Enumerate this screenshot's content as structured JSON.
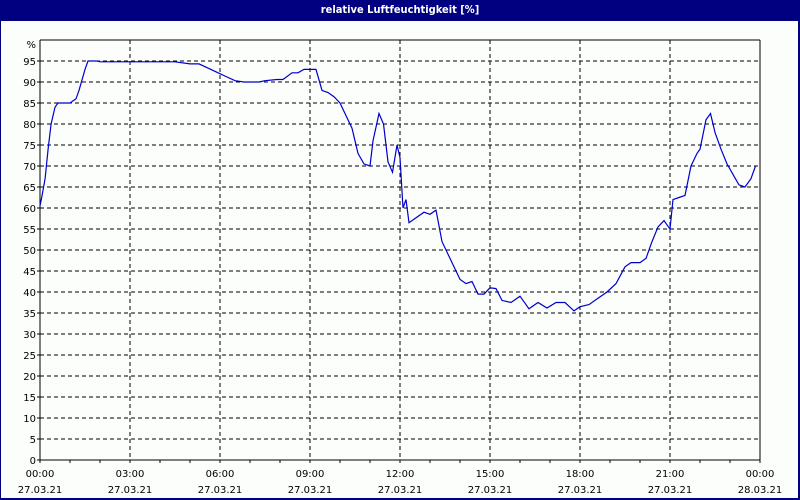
{
  "window": {
    "title": "relative Luftfeuchtigkeit [%]"
  },
  "colors": {
    "frame": "#000080",
    "background": "#fcfefc",
    "line": "#0000cc",
    "grid": "#000000"
  },
  "chart_data": {
    "type": "line",
    "title": "relative Luftfeuchtigkeit [%]",
    "xlabel": "",
    "ylabel": "%",
    "ylim": [
      0,
      100
    ],
    "xlim_hours": [
      0,
      24
    ],
    "grid": true,
    "y_ticks": [
      "0",
      "5",
      "10",
      "15",
      "20",
      "25",
      "30",
      "35",
      "40",
      "45",
      "50",
      "55",
      "60",
      "65",
      "70",
      "75",
      "80",
      "85",
      "90",
      "95",
      "%"
    ],
    "x_ticks": [
      {
        "time": "00:00",
        "date": "27.03.21"
      },
      {
        "time": "03:00",
        "date": "27.03.21"
      },
      {
        "time": "06:00",
        "date": "27.03.21"
      },
      {
        "time": "09:00",
        "date": "27.03.21"
      },
      {
        "time": "12:00",
        "date": "27.03.21"
      },
      {
        "time": "15:00",
        "date": "27.03.21"
      },
      {
        "time": "18:00",
        "date": "27.03.21"
      },
      {
        "time": "21:00",
        "date": "27.03.21"
      },
      {
        "time": "00:00",
        "date": "28.03.21"
      }
    ],
    "series": [
      {
        "name": "relative Luftfeuchtigkeit",
        "x_hours": [
          0,
          0.07,
          0.17,
          0.27,
          0.37,
          0.5,
          0.6,
          1.0,
          1.1,
          1.2,
          1.3,
          1.5,
          1.6,
          1.9,
          2.0,
          3.0,
          4.0,
          4.5,
          5.0,
          5.3,
          5.6,
          5.9,
          6.2,
          6.5,
          6.8,
          7.0,
          7.3,
          7.5,
          7.9,
          8.1,
          8.4,
          8.6,
          8.8,
          9.0,
          9.2,
          9.4,
          9.6,
          9.8,
          10.0,
          10.2,
          10.4,
          10.6,
          10.8,
          11.0,
          11.1,
          11.3,
          11.45,
          11.6,
          11.75,
          11.9,
          12.0,
          12.1,
          12.2,
          12.3,
          12.5,
          12.8,
          13.0,
          13.2,
          13.4,
          13.7,
          14.0,
          14.2,
          14.4,
          14.6,
          14.8,
          15.0,
          15.2,
          15.4,
          15.7,
          16.0,
          16.3,
          16.6,
          16.9,
          17.2,
          17.5,
          17.8,
          18.0,
          18.3,
          18.6,
          18.9,
          19.2,
          19.5,
          19.7,
          20.0,
          20.2,
          20.4,
          20.6,
          20.8,
          20.9,
          21.0,
          21.1,
          21.3,
          21.5,
          21.7,
          21.9,
          22.0,
          22.2,
          22.35,
          22.5,
          22.7,
          22.9,
          23.1,
          23.3,
          23.5,
          23.7,
          23.85
        ],
        "values": [
          60.5,
          63,
          67,
          74,
          80,
          84,
          85,
          85,
          85.5,
          86,
          88,
          93,
          95,
          95,
          94.8,
          94.8,
          94.8,
          94.8,
          94.3,
          94.3,
          93.3,
          92.3,
          91.3,
          90.3,
          90,
          90,
          90,
          90.3,
          90.6,
          90.6,
          92.2,
          92.2,
          93,
          93,
          93,
          88,
          87.5,
          86.5,
          85,
          82,
          79,
          73,
          70.5,
          70,
          76,
          82.5,
          80,
          71,
          68.5,
          75,
          72,
          60,
          62,
          56.5,
          57.5,
          59,
          58.5,
          59.5,
          52,
          47.5,
          43,
          42,
          42.5,
          39.5,
          39.5,
          41,
          40.8,
          38,
          37.5,
          39,
          36,
          37.5,
          36.2,
          37.5,
          37.5,
          35.5,
          36.5,
          37,
          38.5,
          40,
          42,
          46,
          47,
          47,
          48,
          52,
          55.5,
          57,
          56,
          55,
          62,
          62.5,
          63,
          70,
          73,
          74,
          81,
          82.5,
          78,
          74,
          70.5,
          68,
          65.5,
          65,
          67,
          70
        ]
      }
    ]
  }
}
